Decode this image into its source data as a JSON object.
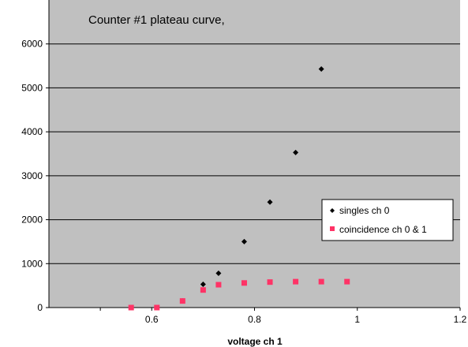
{
  "chart_data": {
    "type": "scatter",
    "title": "Counter #1 plateau curve,",
    "xlabel": "voltage ch 1",
    "ylabel": "",
    "xlim": [
      0.4,
      1.2
    ],
    "ylim": [
      0,
      7000
    ],
    "x_ticks": [
      0.6,
      0.8,
      1,
      1.2
    ],
    "x_tick_labels": [
      "0.6",
      "0.8",
      "1",
      "1.2"
    ],
    "y_ticks": [
      0,
      1000,
      2000,
      3000,
      4000,
      5000,
      6000
    ],
    "y_tick_labels": [
      "0",
      "1000",
      "2000",
      "3000",
      "4000",
      "5000",
      "6000"
    ],
    "grid": "horizontal",
    "plot_background": "#c0c0c0",
    "legend_position": "right",
    "series": [
      {
        "name": "singles ch 0",
        "color": "#000000",
        "marker": "diamond",
        "points": [
          [
            0.56,
            0
          ],
          [
            0.61,
            0
          ],
          [
            0.66,
            150
          ],
          [
            0.7,
            530
          ],
          [
            0.73,
            780
          ],
          [
            0.78,
            1500
          ],
          [
            0.83,
            2400
          ],
          [
            0.88,
            3530
          ],
          [
            0.93,
            5430
          ]
        ]
      },
      {
        "name": "coincidence ch 0 & 1",
        "color": "#ff3366",
        "marker": "square",
        "points": [
          [
            0.56,
            0
          ],
          [
            0.61,
            0
          ],
          [
            0.66,
            150
          ],
          [
            0.7,
            400
          ],
          [
            0.73,
            520
          ],
          [
            0.78,
            560
          ],
          [
            0.83,
            580
          ],
          [
            0.88,
            590
          ],
          [
            0.93,
            590
          ],
          [
            0.98,
            590
          ]
        ]
      }
    ]
  }
}
